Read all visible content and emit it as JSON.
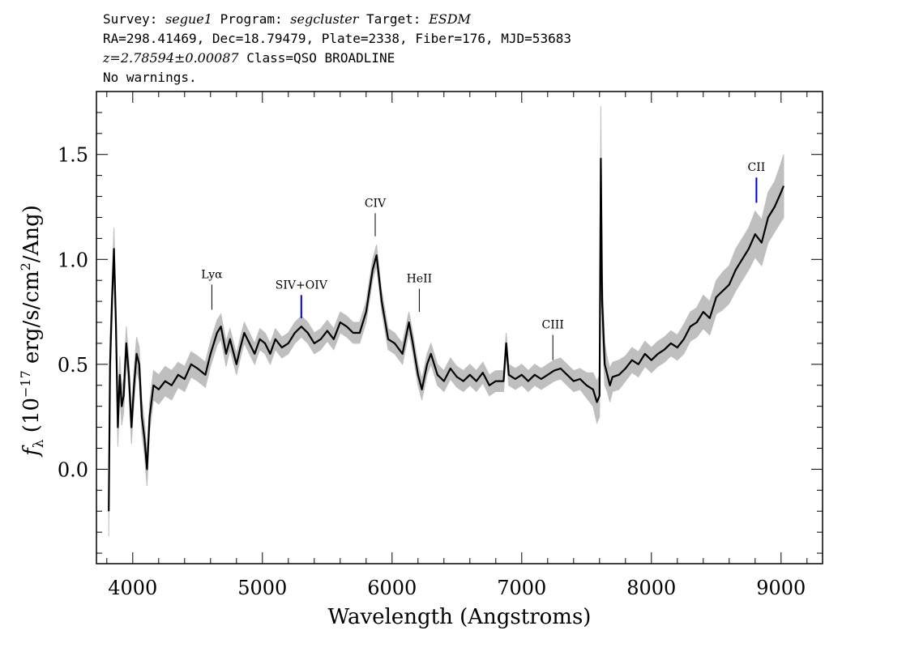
{
  "header": {
    "survey_label": "Survey:",
    "survey_value": "segue1",
    "program_label": "Program:",
    "program_value": "segcluster",
    "target_label": "Target:",
    "target_value": "ESDM",
    "coords_line": "RA=298.41469, Dec=18.79479, Plate=2338, Fiber=176, MJD=53683",
    "redshift": "z=2.78594±0.00087",
    "class_text": "Class=QSO BROADLINE",
    "warnings": "No warnings."
  },
  "colors": {
    "flux": "#000000",
    "error_band": "#bfbfbf",
    "line_marker": "#0000cc",
    "axes": "#000000"
  },
  "chart_data": {
    "type": "line",
    "xlabel": "Wavelength (Angstroms)",
    "ylabel_prefix": "f",
    "ylabel_sub": "λ",
    "ylabel_paren_open": "(10",
    "ylabel_exp": "−17",
    "ylabel_units1": "erg/s/cm",
    "ylabel_exp2": "2",
    "ylabel_units2": "/Ang)",
    "xlim": [
      3720,
      9320
    ],
    "ylim": [
      -0.45,
      1.8
    ],
    "x_ticks": [
      4000,
      5000,
      6000,
      7000,
      8000,
      9000
    ],
    "x_tick_labels": [
      "4000",
      "5000",
      "6000",
      "7000",
      "8000",
      "9000"
    ],
    "y_ticks": [
      0.0,
      0.5,
      1.0,
      1.5
    ],
    "y_tick_labels": [
      "0.0",
      "0.5",
      "1.0",
      "1.5"
    ],
    "x_minor_step": 200,
    "y_minor_step": 0.1,
    "grid": false,
    "series": [
      {
        "x": [
          3815,
          3825,
          3840,
          3855,
          3870,
          3885,
          3900,
          3915,
          3930,
          3950,
          3970,
          3990,
          4010,
          4030,
          4050,
          4070,
          4090,
          4110,
          4130,
          4160,
          4200,
          4250,
          4300,
          4350,
          4400,
          4450,
          4500,
          4560,
          4600,
          4650,
          4680,
          4720,
          4750,
          4800,
          4830,
          4860,
          4900,
          4940,
          4980,
          5020,
          5060,
          5100,
          5150,
          5200,
          5250,
          5300,
          5350,
          5400,
          5450,
          5500,
          5550,
          5600,
          5650,
          5700,
          5750,
          5800,
          5850,
          5880,
          5920,
          5970,
          6020,
          6080,
          6130,
          6160,
          6200,
          6230,
          6270,
          6300,
          6350,
          6400,
          6450,
          6500,
          6550,
          6600,
          6650,
          6700,
          6750,
          6800,
          6860,
          6880,
          6900,
          6950,
          7000,
          7050,
          7100,
          7150,
          7200,
          7250,
          7300,
          7350,
          7400,
          7450,
          7500,
          7550,
          7580,
          7600,
          7610,
          7620,
          7640,
          7660,
          7680,
          7700,
          7750,
          7800,
          7850,
          7900,
          7950,
          8000,
          8050,
          8100,
          8150,
          8200,
          8250,
          8300,
          8350,
          8400,
          8450,
          8500,
          8550,
          8600,
          8650,
          8700,
          8750,
          8800,
          8850,
          8900,
          8950,
          9000,
          9020
        ],
        "y": [
          -0.2,
          0.5,
          0.8,
          1.05,
          0.7,
          0.2,
          0.45,
          0.3,
          0.35,
          0.6,
          0.45,
          0.2,
          0.4,
          0.55,
          0.5,
          0.25,
          0.15,
          0.0,
          0.25,
          0.4,
          0.38,
          0.42,
          0.4,
          0.45,
          0.43,
          0.5,
          0.48,
          0.45,
          0.55,
          0.65,
          0.68,
          0.55,
          0.62,
          0.5,
          0.58,
          0.65,
          0.6,
          0.55,
          0.62,
          0.6,
          0.55,
          0.62,
          0.58,
          0.6,
          0.65,
          0.68,
          0.65,
          0.6,
          0.62,
          0.66,
          0.62,
          0.7,
          0.68,
          0.65,
          0.65,
          0.75,
          0.95,
          1.02,
          0.8,
          0.62,
          0.6,
          0.55,
          0.7,
          0.6,
          0.45,
          0.38,
          0.5,
          0.55,
          0.45,
          0.42,
          0.48,
          0.44,
          0.42,
          0.45,
          0.42,
          0.46,
          0.4,
          0.42,
          0.42,
          0.6,
          0.45,
          0.43,
          0.45,
          0.42,
          0.45,
          0.43,
          0.45,
          0.47,
          0.48,
          0.45,
          0.42,
          0.43,
          0.4,
          0.38,
          0.32,
          0.35,
          1.48,
          0.8,
          0.5,
          0.45,
          0.4,
          0.44,
          0.45,
          0.48,
          0.52,
          0.5,
          0.55,
          0.52,
          0.55,
          0.57,
          0.6,
          0.58,
          0.62,
          0.68,
          0.7,
          0.75,
          0.72,
          0.82,
          0.85,
          0.88,
          0.95,
          1.0,
          1.05,
          1.12,
          1.08,
          1.2,
          1.25,
          1.32,
          1.35
        ],
        "err": [
          0.12,
          0.12,
          0.1,
          0.1,
          0.1,
          0.09,
          0.09,
          0.09,
          0.08,
          0.08,
          0.08,
          0.08,
          0.08,
          0.08,
          0.08,
          0.08,
          0.08,
          0.08,
          0.07,
          0.07,
          0.07,
          0.07,
          0.07,
          0.06,
          0.06,
          0.06,
          0.06,
          0.06,
          0.06,
          0.06,
          0.06,
          0.06,
          0.05,
          0.05,
          0.05,
          0.05,
          0.05,
          0.05,
          0.05,
          0.05,
          0.05,
          0.05,
          0.05,
          0.05,
          0.05,
          0.05,
          0.05,
          0.05,
          0.05,
          0.05,
          0.05,
          0.05,
          0.05,
          0.05,
          0.05,
          0.05,
          0.05,
          0.05,
          0.05,
          0.05,
          0.05,
          0.05,
          0.05,
          0.05,
          0.05,
          0.05,
          0.05,
          0.05,
          0.05,
          0.05,
          0.05,
          0.05,
          0.05,
          0.05,
          0.05,
          0.05,
          0.05,
          0.05,
          0.05,
          0.05,
          0.05,
          0.05,
          0.05,
          0.05,
          0.05,
          0.05,
          0.05,
          0.05,
          0.05,
          0.05,
          0.05,
          0.05,
          0.06,
          0.08,
          0.1,
          0.1,
          0.25,
          0.15,
          0.1,
          0.08,
          0.08,
          0.07,
          0.07,
          0.06,
          0.06,
          0.06,
          0.06,
          0.06,
          0.06,
          0.06,
          0.06,
          0.06,
          0.07,
          0.07,
          0.07,
          0.08,
          0.08,
          0.08,
          0.09,
          0.09,
          0.1,
          0.1,
          0.1,
          0.11,
          0.11,
          0.12,
          0.12,
          0.14,
          0.15
        ]
      }
    ],
    "line_markers": [
      {
        "label": "Lyα",
        "x": 4610,
        "y_bottom": 0.76,
        "y_top": 0.88,
        "color": "#000000"
      },
      {
        "label": "SIV+OIV",
        "x": 5300,
        "y_bottom": 0.72,
        "y_top": 0.83,
        "color": "#0000cc"
      },
      {
        "label": "CIV",
        "x": 5870,
        "y_bottom": 1.11,
        "y_top": 1.22,
        "color": "#000000"
      },
      {
        "label": "HeII",
        "x": 6210,
        "y_bottom": 0.75,
        "y_top": 0.86,
        "color": "#000000"
      },
      {
        "label": "CIII",
        "x": 7240,
        "y_bottom": 0.52,
        "y_top": 0.64,
        "color": "#000000"
      },
      {
        "label": "CII",
        "x": 8810,
        "y_bottom": 1.27,
        "y_top": 1.39,
        "color": "#0000cc"
      }
    ]
  }
}
